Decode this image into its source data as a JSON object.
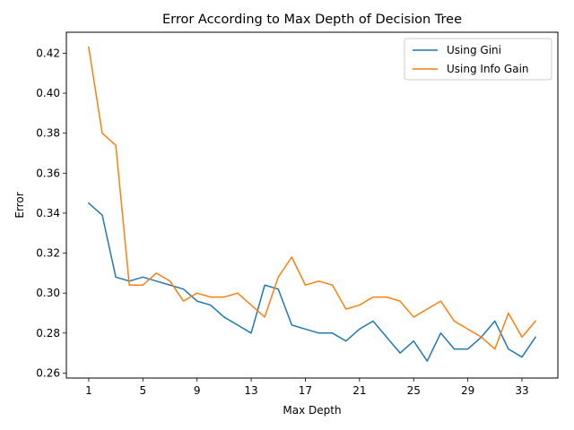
{
  "chart_data": {
    "type": "line",
    "title": "Error According to Max Depth of Decision Tree",
    "xlabel": "Max Depth",
    "ylabel": "Error",
    "xlim": [
      -0.65,
      35.65
    ],
    "ylim": [
      0.2575,
      0.4305
    ],
    "xticks": [
      1,
      5,
      9,
      13,
      17,
      21,
      25,
      29,
      33
    ],
    "yticks": [
      0.26,
      0.28,
      0.3,
      0.32,
      0.34,
      0.36,
      0.38,
      0.4,
      0.42
    ],
    "legend_position": "top-right",
    "grid": false,
    "x": [
      1,
      2,
      3,
      4,
      5,
      6,
      7,
      8,
      9,
      10,
      11,
      12,
      13,
      14,
      15,
      16,
      17,
      18,
      19,
      20,
      21,
      22,
      23,
      24,
      25,
      26,
      27,
      28,
      29,
      30,
      31,
      32,
      33,
      34
    ],
    "series": [
      {
        "name": "Using Gini",
        "color": "#1f77b4",
        "values": [
          0.345,
          0.339,
          0.308,
          0.306,
          0.308,
          0.306,
          0.304,
          0.302,
          0.296,
          0.294,
          0.288,
          0.284,
          0.28,
          0.304,
          0.302,
          0.284,
          0.282,
          0.28,
          0.28,
          0.276,
          0.282,
          0.286,
          0.278,
          0.27,
          0.276,
          0.266,
          0.28,
          0.272,
          0.272,
          0.278,
          0.286,
          0.272,
          0.268,
          0.278
        ]
      },
      {
        "name": "Using Info Gain",
        "color": "#ff7f0e",
        "values": [
          0.423,
          0.38,
          0.374,
          0.304,
          0.304,
          0.31,
          0.306,
          0.296,
          0.3,
          0.298,
          0.298,
          0.3,
          0.294,
          0.288,
          0.308,
          0.318,
          0.304,
          0.306,
          0.304,
          0.292,
          0.294,
          0.298,
          0.298,
          0.296,
          0.288,
          0.292,
          0.296,
          0.286,
          0.282,
          0.278,
          0.272,
          0.29,
          0.278,
          0.286
        ]
      }
    ]
  }
}
